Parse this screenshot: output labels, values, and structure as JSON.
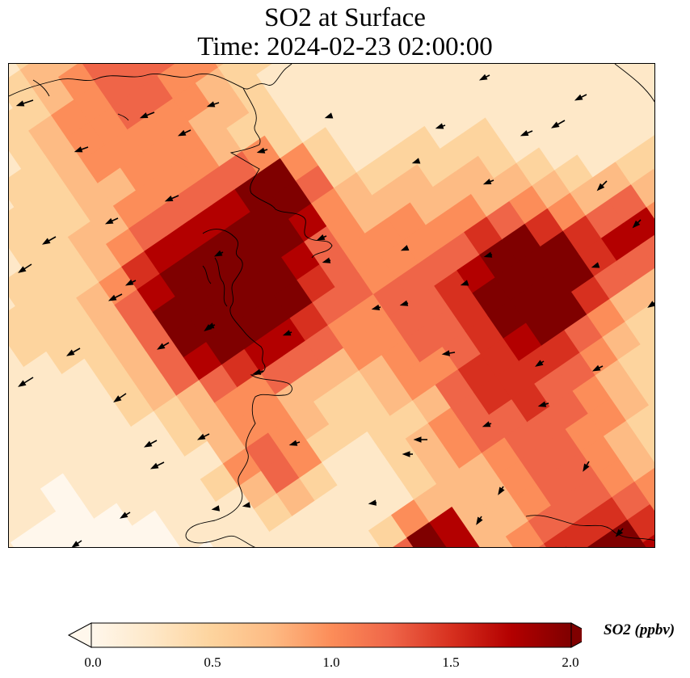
{
  "title": {
    "line1": "SO2 at Surface",
    "line2": "Time: 2024-02-23 02:00:00"
  },
  "colorbar": {
    "label": "SO2 (ppbv)",
    "ticks": [
      "0.0",
      "0.5",
      "1.0",
      "1.5",
      "2.0"
    ],
    "vmin": 0.0,
    "vmax": 2.0,
    "extend": "both",
    "colormap": "OrRd",
    "colors": [
      "#fff7ec",
      "#fee8c8",
      "#fdd49e",
      "#fdbb84",
      "#fc8d59",
      "#ef6548",
      "#d7301f",
      "#b30000",
      "#7f0000"
    ]
  },
  "map": {
    "field": "SO2 surface concentration",
    "wind_direction": "mostly from the east-northeast (arrows point west-southwest)",
    "coastlines": true
  }
}
